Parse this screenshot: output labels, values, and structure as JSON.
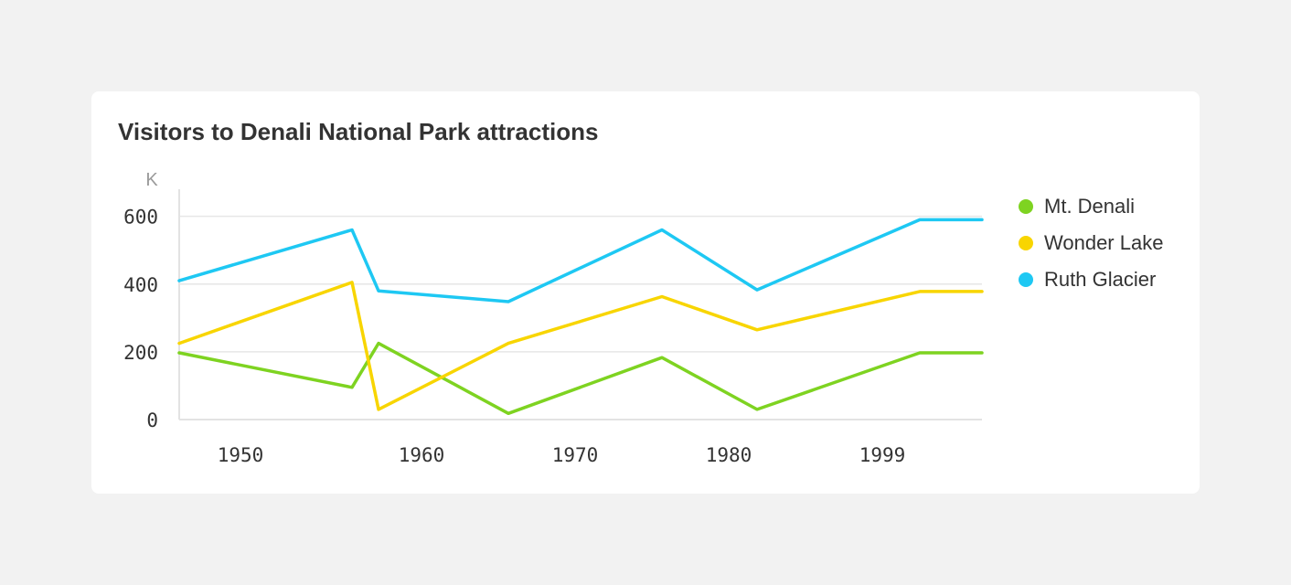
{
  "chart_data": {
    "type": "line",
    "title": "Visitors to Denali National Park attractions",
    "ylabel": "K",
    "xlabel": "",
    "categories": [
      "1950",
      "",
      "1960",
      "1970",
      "",
      "1980",
      "1999",
      ""
    ],
    "x_tick_labels": [
      "1950",
      "1960",
      "1970",
      "1980",
      "1999"
    ],
    "y_ticks": [
      0,
      200,
      400,
      600
    ],
    "ylim": [
      0,
      680
    ],
    "grid": true,
    "legend_position": "right",
    "series": [
      {
        "name": "Mt. Denali",
        "color": "#7ed321",
        "values": [
          197,
          95,
          225,
          18,
          183,
          30,
          197,
          197
        ]
      },
      {
        "name": "Wonder Lake",
        "color": "#f8d500",
        "values": [
          225,
          405,
          30,
          225,
          363,
          265,
          378,
          378
        ]
      },
      {
        "name": "Ruth Glacier",
        "color": "#1ec8f3",
        "values": [
          410,
          560,
          380,
          348,
          560,
          383,
          590,
          590
        ]
      }
    ]
  }
}
